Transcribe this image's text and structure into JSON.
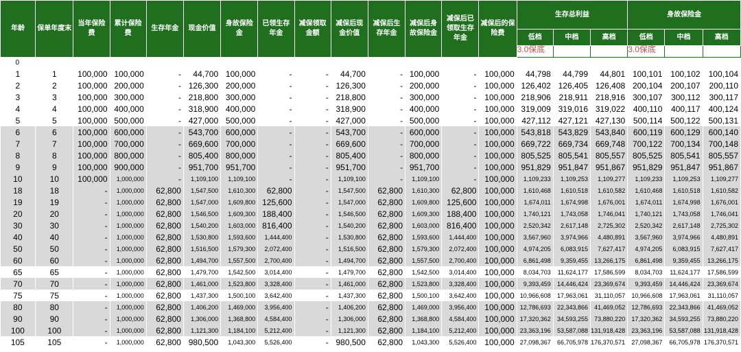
{
  "header": {
    "col_age": "年龄",
    "col_policy_year": "保单年度末",
    "col_premium": "当年保险费",
    "col_cum_premium": "累计保险费",
    "col_annuity": "生存年金",
    "col_cash_value": "现金价值",
    "col_death_benefit": "身故保险金",
    "col_received_annuity": "已领生存年金",
    "col_reduced_amount": "减保领取金额",
    "col_reduced_cash_value": "减保后现金价值",
    "col_reduced_annuity": "减保后生存年金",
    "col_reduced_death_benefit": "减保后身故保险金",
    "col_reduced_received_annuity": "减保后已领取生存年金",
    "col_reduced_premium": "减保后的保险费",
    "group_survival": "生存总利益",
    "group_death": "身故保险金",
    "sub_low": "低档",
    "sub_mid": "中档",
    "sub_high": "高档",
    "note_survival": "3.0保底",
    "note_death": "3.0保底"
  },
  "row0_age": "0",
  "rows": [
    {
      "age": "1",
      "year": "1",
      "c2": "100,000",
      "c3": "100,000",
      "c4": "-",
      "c5": "44,700",
      "c6": "100,000",
      "c7": "-",
      "c8": "-",
      "c9": "44,700",
      "c10": "-",
      "c11": "100,000",
      "c12": "-",
      "c13": "100,000",
      "c14": "44,798",
      "c15": "44,799",
      "c16": "44,801",
      "c17": "100,101",
      "c18": "100,102",
      "c19": "100,104",
      "shade": "white"
    },
    {
      "age": "2",
      "year": "2",
      "c2": "100,000",
      "c3": "200,000",
      "c4": "-",
      "c5": "126,300",
      "c6": "200,000",
      "c7": "-",
      "c8": "-",
      "c9": "126,300",
      "c10": "-",
      "c11": "200,000",
      "c12": "-",
      "c13": "100,000",
      "c14": "126,402",
      "c15": "126,405",
      "c16": "126,408",
      "c17": "200,104",
      "c18": "200,107",
      "c19": "200,110",
      "shade": "white"
    },
    {
      "age": "3",
      "year": "3",
      "c2": "100,000",
      "c3": "300,000",
      "c4": "-",
      "c5": "218,800",
      "c6": "300,000",
      "c7": "-",
      "c8": "-",
      "c9": "218,800",
      "c10": "-",
      "c11": "300,000",
      "c12": "-",
      "c13": "100,000",
      "c14": "218,906",
      "c15": "218,911",
      "c16": "218,916",
      "c17": "300,107",
      "c18": "300,112",
      "c19": "300,117",
      "shade": "white"
    },
    {
      "age": "4",
      "year": "4",
      "c2": "100,000",
      "c3": "400,000",
      "c4": "-",
      "c5": "318,900",
      "c6": "400,000",
      "c7": "-",
      "c8": "-",
      "c9": "318,900",
      "c10": "-",
      "c11": "400,000",
      "c12": "-",
      "c13": "100,000",
      "c14": "319,009",
      "c15": "319,016",
      "c16": "319,022",
      "c17": "400,110",
      "c18": "400,117",
      "c19": "400,124",
      "shade": "white"
    },
    {
      "age": "5",
      "year": "5",
      "c2": "100,000",
      "c3": "500,000",
      "c4": "-",
      "c5": "427,000",
      "c6": "500,000",
      "c7": "-",
      "c8": "-",
      "c9": "427,000",
      "c10": "-",
      "c11": "500,000",
      "c12": "-",
      "c13": "100,000",
      "c14": "427,112",
      "c15": "427,121",
      "c16": "427,130",
      "c17": "500,114",
      "c18": "500,122",
      "c19": "500,131",
      "shade": "white"
    },
    {
      "age": "6",
      "year": "6",
      "c2": "100,000",
      "c3": "600,000",
      "c4": "-",
      "c5": "543,700",
      "c6": "600,000",
      "c7": "-",
      "c8": "-",
      "c9": "543,700",
      "c10": "-",
      "c11": "600,000",
      "c12": "-",
      "c13": "100,000",
      "c14": "543,818",
      "c15": "543,829",
      "c16": "543,840",
      "c17": "600,119",
      "c18": "600,129",
      "c19": "600,140",
      "shade": "grey"
    },
    {
      "age": "7",
      "year": "7",
      "c2": "100,000",
      "c3": "700,000",
      "c4": "-",
      "c5": "669,600",
      "c6": "700,000",
      "c7": "-",
      "c8": "-",
      "c9": "669,600",
      "c10": "-",
      "c11": "700,000",
      "c12": "-",
      "c13": "100,000",
      "c14": "669,722",
      "c15": "669,734",
      "c16": "669,748",
      "c17": "700,122",
      "c18": "700,134",
      "c19": "700,148",
      "shade": "grey"
    },
    {
      "age": "8",
      "year": "8",
      "c2": "100,000",
      "c3": "800,000",
      "c4": "-",
      "c5": "805,400",
      "c6": "800,000",
      "c7": "-",
      "c8": "-",
      "c9": "805,400",
      "c10": "-",
      "c11": "800,000",
      "c12": "-",
      "c13": "100,000",
      "c14": "805,525",
      "c15": "805,541",
      "c16": "805,557",
      "c17": "805,525",
      "c18": "805,541",
      "c19": "805,557",
      "shade": "grey"
    },
    {
      "age": "9",
      "year": "9",
      "c2": "100,000",
      "c3": "900,000",
      "c4": "-",
      "c5": "951,700",
      "c6": "951,700",
      "c7": "-",
      "c8": "-",
      "c9": "951,700",
      "c10": "-",
      "c11": "951,700",
      "c12": "-",
      "c13": "100,000",
      "c14": "951,829",
      "c15": "951,847",
      "c16": "951,867",
      "c17": "951,829",
      "c18": "951,847",
      "c19": "951,867",
      "shade": "grey"
    },
    {
      "age": "10",
      "year": "10",
      "c2": "100,000",
      "c3": "1,000,000",
      "c4": "-",
      "c5": "1,109,100",
      "c6": "1,109,100",
      "c7": "-",
      "c8": "-",
      "c9": "1,109,100",
      "c10": "-",
      "c11": "1,109,100",
      "c12": "-",
      "c13": "100,000",
      "c14": "1,109,233",
      "c15": "1,109,253",
      "c16": "1,109,277",
      "c17": "1,109,233",
      "c18": "1,109,253",
      "c19": "1,109,277",
      "shade": "grey"
    },
    {
      "age": "18",
      "year": "18",
      "c2": "-",
      "c3": "1,000,000",
      "c4": "62,800",
      "c5": "1,547,500",
      "c6": "1,610,300",
      "c7": "62,800",
      "c8": "-",
      "c9": "1,547,500",
      "c10": "62,800",
      "c11": "1,610,300",
      "c12": "62,800",
      "c13": "100,000",
      "c14": "1,610,468",
      "c15": "1,610,518",
      "c16": "1,610,582",
      "c17": "1,610,468",
      "c18": "1,610,518",
      "c19": "1,610,582",
      "shade": "grey"
    },
    {
      "age": "19",
      "year": "19",
      "c2": "-",
      "c3": "1,000,000",
      "c4": "62,800",
      "c5": "1,547,000",
      "c6": "1,609,800",
      "c7": "125,600",
      "c8": "-",
      "c9": "1,547,000",
      "c10": "62,800",
      "c11": "1,609,800",
      "c12": "125,600",
      "c13": "100,000",
      "c14": "1,674,011",
      "c15": "1,674,998",
      "c16": "1,676,001",
      "c17": "1,674,011",
      "c18": "1,674,998",
      "c19": "1,676,001",
      "shade": "grey"
    },
    {
      "age": "20",
      "year": "20",
      "c2": "-",
      "c3": "1,000,000",
      "c4": "62,800",
      "c5": "1,546,500",
      "c6": "1,609,300",
      "c7": "188,400",
      "c8": "-",
      "c9": "1,546,500",
      "c10": "62,800",
      "c11": "1,609,300",
      "c12": "188,400",
      "c13": "100,000",
      "c14": "1,740,121",
      "c15": "1,743,058",
      "c16": "1,746,041",
      "c17": "1,740,121",
      "c18": "1,743,058",
      "c19": "1,746,041",
      "shade": "grey"
    },
    {
      "age": "30",
      "year": "30",
      "c2": "-",
      "c3": "1,000,000",
      "c4": "62,800",
      "c5": "1,540,200",
      "c6": "1,603,000",
      "c7": "816,400",
      "c8": "-",
      "c9": "1,540,200",
      "c10": "62,800",
      "c11": "1,603,000",
      "c12": "816,400",
      "c13": "100,000",
      "c14": "2,520,342",
      "c15": "2,617,148",
      "c16": "2,725,302",
      "c17": "2,520,342",
      "c18": "2,617,148",
      "c19": "2,725,302",
      "shade": "grey"
    },
    {
      "age": "40",
      "year": "40",
      "c2": "-",
      "c3": "1,000,000",
      "c4": "62,800",
      "c5": "1,530,800",
      "c6": "1,593,600",
      "c7": "1,444,400",
      "c8": "-",
      "c9": "1,530,800",
      "c10": "62,800",
      "c11": "1,593,600",
      "c12": "1,444,400",
      "c13": "100,000",
      "c14": "3,567,960",
      "c15": "3,974,966",
      "c16": "4,480,891",
      "c17": "3,567,960",
      "c18": "3,974,966",
      "c19": "4,480,891",
      "shade": "grey"
    },
    {
      "age": "50",
      "year": "50",
      "c2": "-",
      "c3": "1,000,000",
      "c4": "62,800",
      "c5": "1,516,500",
      "c6": "1,579,300",
      "c7": "2,072,400",
      "c8": "-",
      "c9": "1,516,500",
      "c10": "62,800",
      "c11": "1,579,300",
      "c12": "2,072,400",
      "c13": "100,000",
      "c14": "4,974,205",
      "c15": "6,083,915",
      "c16": "7,627,417",
      "c17": "4,974,205",
      "c18": "6,083,915",
      "c19": "7,627,417",
      "shade": "grey"
    },
    {
      "age": "60",
      "year": "60",
      "c2": "-",
      "c3": "1,000,000",
      "c4": "62,800",
      "c5": "1,494,700",
      "c6": "1,557,500",
      "c7": "2,700,400",
      "c8": "-",
      "c9": "1,494,700",
      "c10": "62,800",
      "c11": "1,557,500",
      "c12": "2,700,400",
      "c13": "100,000",
      "c14": "6,861,498",
      "c15": "9,359,455",
      "c16": "13,266,175",
      "c17": "6,861,498",
      "c18": "9,359,455",
      "c19": "13,266,175",
      "shade": "grey"
    },
    {
      "age": "65",
      "year": "65",
      "c2": "-",
      "c3": "1,000,000",
      "c4": "62,800",
      "c5": "1,479,700",
      "c6": "1,542,500",
      "c7": "3,014,400",
      "c8": "-",
      "c9": "1,479,700",
      "c10": "62,800",
      "c11": "1,542,500",
      "c12": "3,014,400",
      "c13": "100,000",
      "c14": "8,034,703",
      "c15": "11,624,177",
      "c16": "17,586,599",
      "c17": "8,034,703",
      "c18": "11,624,177",
      "c19": "17,586,599",
      "shade": "white"
    },
    {
      "age": "70",
      "year": "70",
      "c2": "-",
      "c3": "1,000,000",
      "c4": "62,800",
      "c5": "1,461,000",
      "c6": "1,523,800",
      "c7": "3,328,400",
      "c8": "-",
      "c9": "1,461,000",
      "c10": "62,800",
      "c11": "1,523,800",
      "c12": "3,328,400",
      "c13": "100,000",
      "c14": "9,393,459",
      "c15": "14,446,424",
      "c16": "23,369,674",
      "c17": "9,393,459",
      "c18": "14,446,424",
      "c19": "23,369,674",
      "shade": "grey"
    },
    {
      "age": "75",
      "year": "75",
      "c2": "-",
      "c3": "1,000,000",
      "c4": "62,800",
      "c5": "1,437,300",
      "c6": "1,500,100",
      "c7": "3,642,400",
      "c8": "-",
      "c9": "1,437,300",
      "c10": "62,800",
      "c11": "1,500,100",
      "c12": "3,642,400",
      "c13": "100,000",
      "c14": "10,966,608",
      "c15": "17,963,061",
      "c16": "31,110,057",
      "c17": "10,966,608",
      "c18": "17,963,061",
      "c19": "31,110,057",
      "shade": "white"
    },
    {
      "age": "80",
      "year": "80",
      "c2": "-",
      "c3": "1,000,000",
      "c4": "62,800",
      "c5": "1,406,200",
      "c6": "1,469,000",
      "c7": "3,956,400",
      "c8": "-",
      "c9": "1,406,200",
      "c10": "62,800",
      "c11": "1,469,000",
      "c12": "3,956,400",
      "c13": "100,000",
      "c14": "12,786,693",
      "c15": "22,343,866",
      "c16": "41,469,052",
      "c17": "12,786,693",
      "c18": "22,343,866",
      "c19": "41,469,052",
      "shade": "grey"
    },
    {
      "age": "90",
      "year": "90",
      "c2": "-",
      "c3": "1,000,000",
      "c4": "62,800",
      "c5": "1,306,000",
      "c6": "1,368,800",
      "c7": "4,584,400",
      "c8": "-",
      "c9": "1,306,000",
      "c10": "62,800",
      "c11": "1,368,800",
      "c12": "4,584,400",
      "c13": "100,000",
      "c14": "17,320,362",
      "c15": "34,593,255",
      "c16": "73,880,220",
      "c17": "17,320,362",
      "c18": "34,593,255",
      "c19": "73,880,220",
      "shade": "grey"
    },
    {
      "age": "100",
      "year": "100",
      "c2": "-",
      "c3": "1,000,000",
      "c4": "62,800",
      "c5": "1,121,300",
      "c6": "1,184,100",
      "c7": "5,212,400",
      "c8": "-",
      "c9": "1,121,300",
      "c10": "62,800",
      "c11": "1,184,100",
      "c12": "5,212,400",
      "c13": "100,000",
      "c14": "23,363,196",
      "c15": "53,587,088",
      "c16": "131,918,428",
      "c17": "23,363,196",
      "c18": "53,587,088",
      "c19": "131,918,428",
      "shade": "grey"
    },
    {
      "age": "105",
      "year": "105",
      "c2": "-",
      "c3": "1,000,000",
      "c4": "62,800",
      "c5": "980,500",
      "c6": "1,043,300",
      "c7": "5,526,400",
      "c8": "-",
      "c9": "980,500",
      "c10": "62,800",
      "c11": "1,043,300",
      "c12": "5,526,400",
      "c13": "100,000",
      "c14": "27,098,367",
      "c15": "66,705,978",
      "c16": "176,370,571",
      "c17": "27,098,367",
      "c18": "66,705,978",
      "c19": "176,370,571",
      "shade": "white"
    }
  ]
}
